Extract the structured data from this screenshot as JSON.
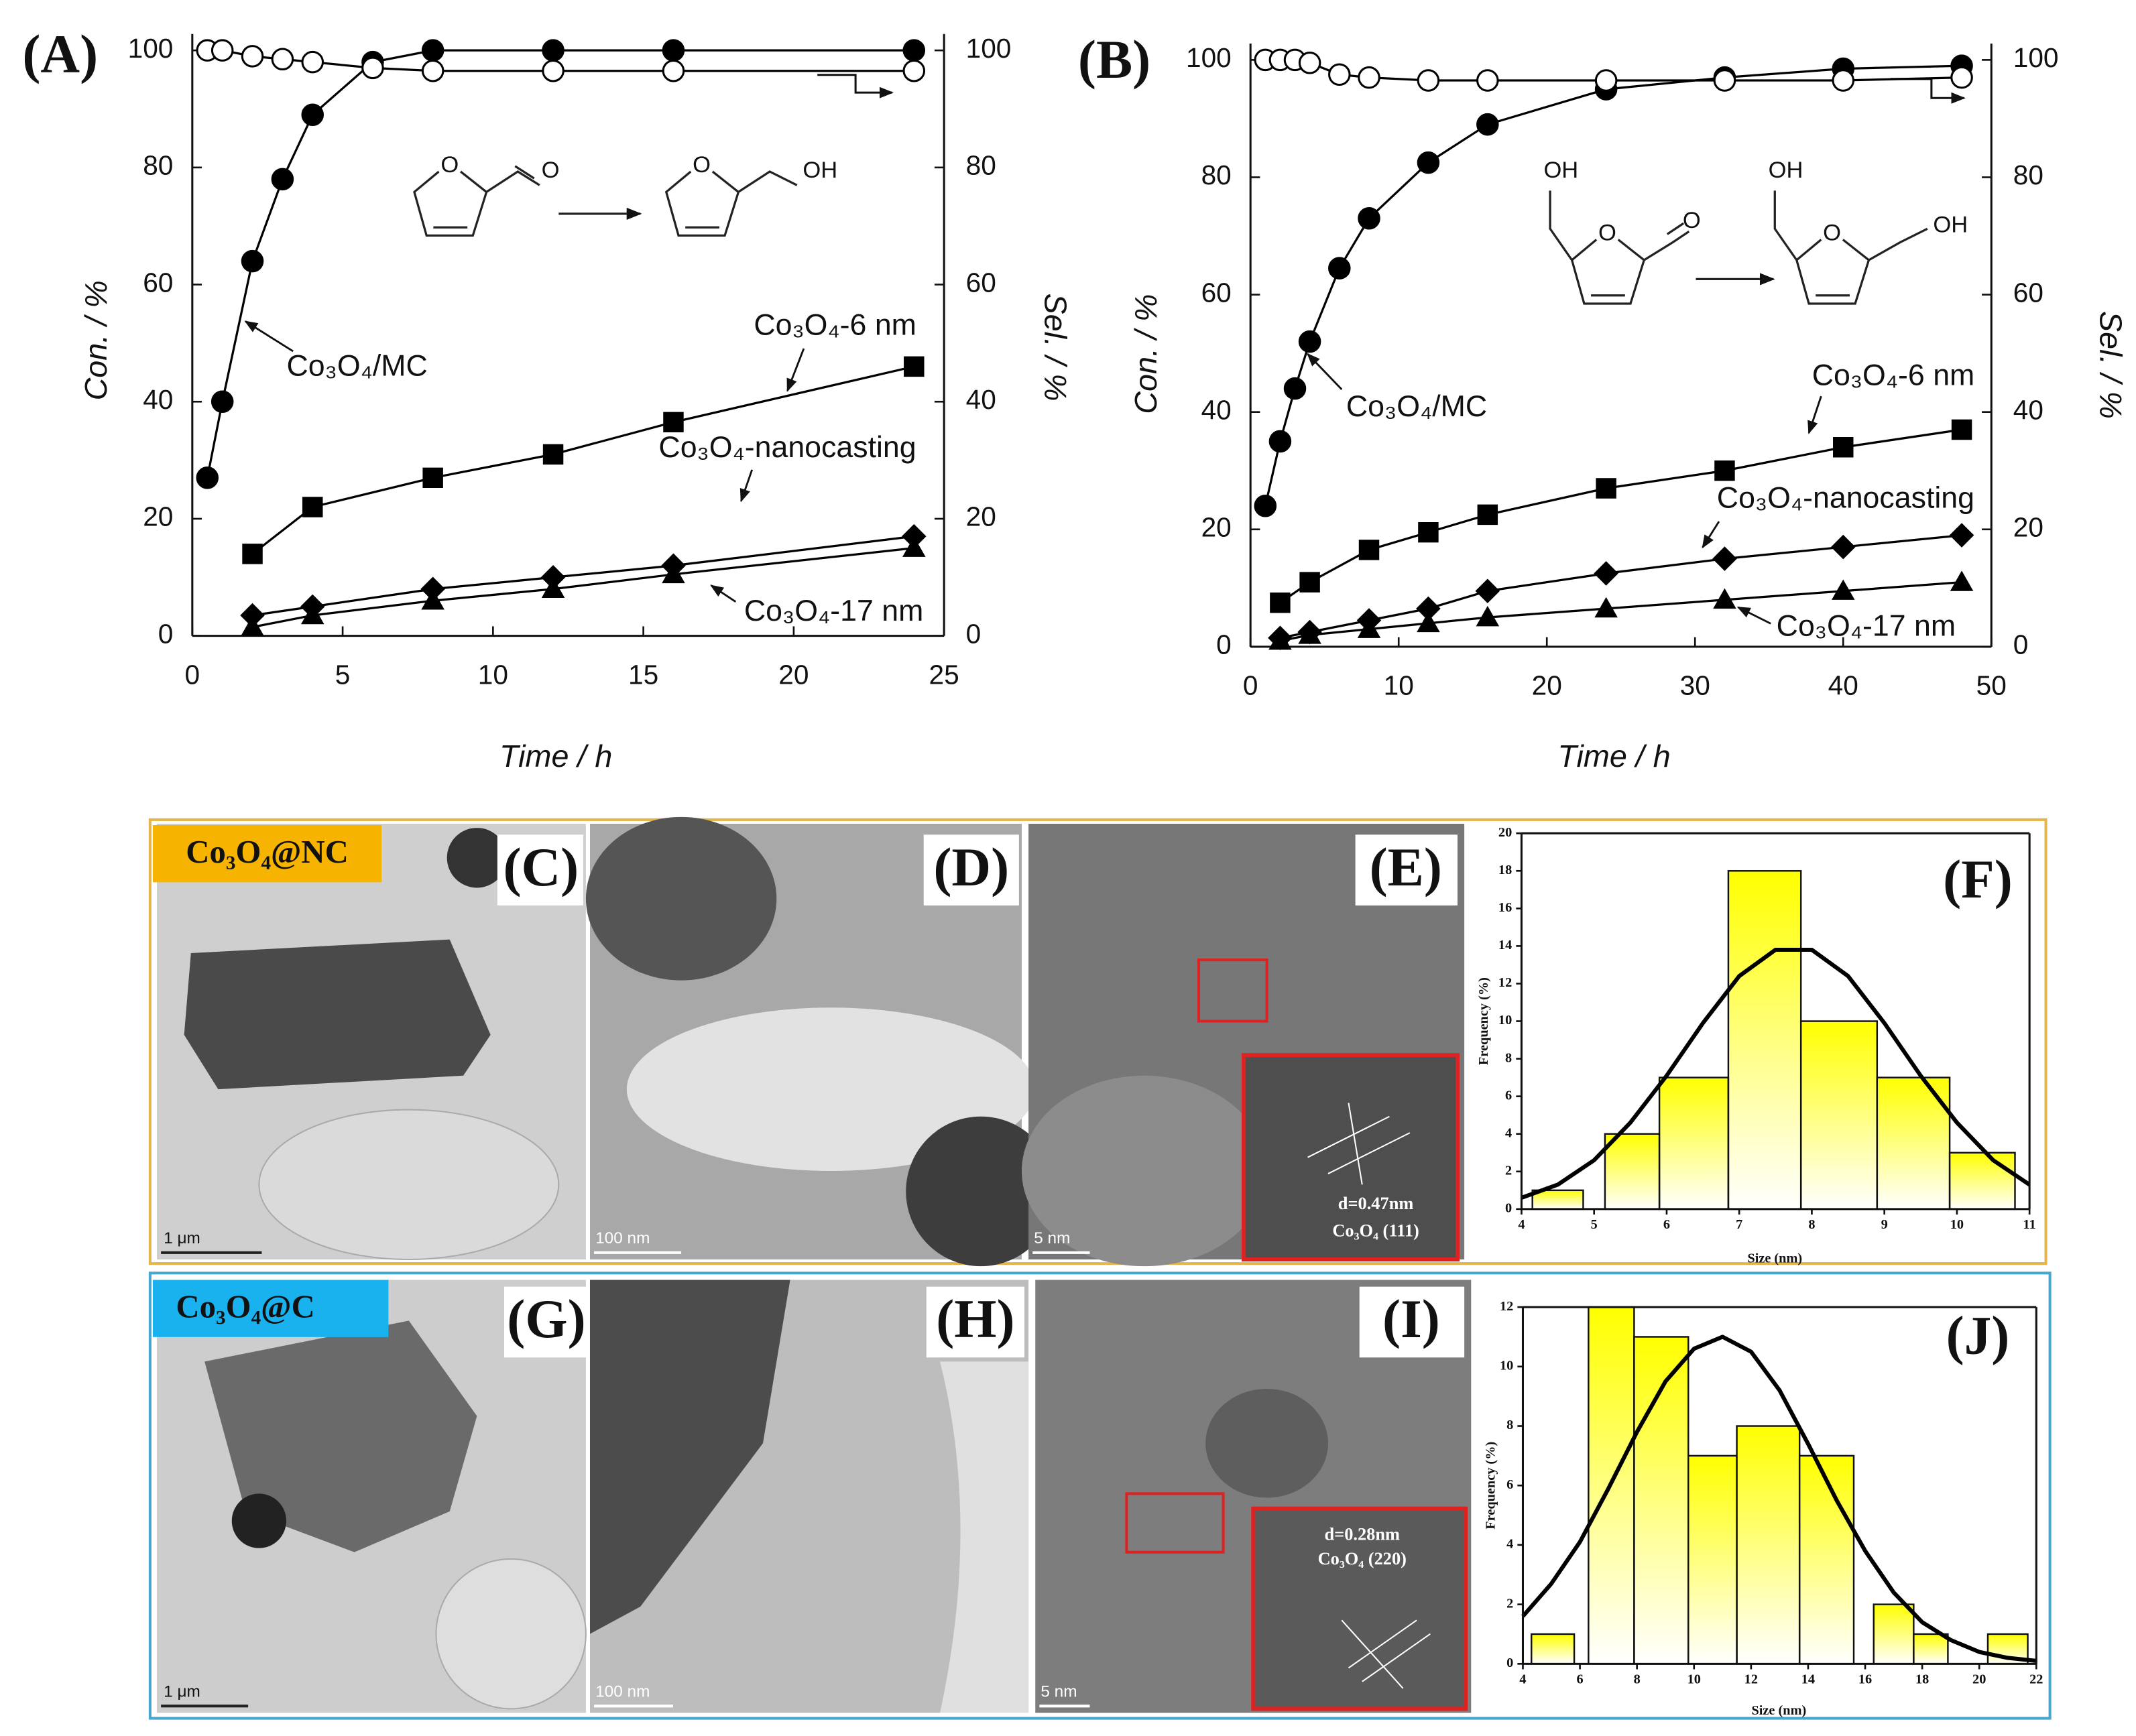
{
  "chart_data": [
    {
      "type": "line",
      "panel_label": "(A)",
      "xlabel": "Time / h",
      "ylabel": "Con. / %",
      "y2label": "Sel. / %",
      "xlim": [
        0,
        25
      ],
      "xticks": [
        0,
        5,
        10,
        15,
        20,
        25
      ],
      "ylim": [
        0,
        100
      ],
      "yticks": [
        0,
        20,
        40,
        60,
        80,
        100
      ],
      "y2lim": [
        0,
        100
      ],
      "y2ticks": [
        0,
        20,
        40,
        60,
        80,
        100
      ],
      "scheme_labels": [
        "O",
        "O",
        "O",
        "OH"
      ],
      "series": [
        {
          "name": "Co₃O₄/MC",
          "marker": "circle",
          "color": "#000000",
          "x": [
            0.5,
            1,
            2,
            3,
            4,
            6,
            8,
            12,
            16,
            24
          ],
          "values": [
            27,
            40,
            64,
            78,
            89,
            98,
            100,
            100,
            100,
            100
          ]
        },
        {
          "marker": "open-circle",
          "color": "#000000",
          "axis": "y2",
          "x": [
            0.5,
            1,
            2,
            3,
            4,
            6,
            8,
            12,
            16,
            24
          ],
          "values": [
            100,
            100,
            99,
            98.5,
            98,
            97,
            96.5,
            96.5,
            96.5,
            96.5
          ]
        },
        {
          "name": "Co₃O₄-6 nm",
          "marker": "square",
          "color": "#000000",
          "x": [
            2,
            4,
            8,
            12,
            16,
            24
          ],
          "values": [
            14,
            22,
            27,
            31,
            36.5,
            46
          ]
        },
        {
          "name": "Co₃O₄-nanocasting",
          "marker": "diamond",
          "color": "#000000",
          "x": [
            2,
            4,
            8,
            12,
            16,
            24
          ],
          "values": [
            3.5,
            5,
            8,
            10,
            12,
            17
          ]
        },
        {
          "name": "Co₃O₄-17 nm",
          "marker": "triangle",
          "color": "#000000",
          "x": [
            2,
            4,
            8,
            12,
            16,
            24
          ],
          "values": [
            1.5,
            3.5,
            6,
            8,
            10.5,
            15
          ]
        }
      ]
    },
    {
      "type": "line",
      "panel_label": "(B)",
      "xlabel": "Time / h",
      "ylabel": "Con. / %",
      "y2label": "Sel. / %",
      "xlim": [
        0,
        50
      ],
      "xticks": [
        0,
        10,
        20,
        30,
        40,
        50
      ],
      "ylim": [
        0,
        100
      ],
      "yticks": [
        0,
        20,
        40,
        60,
        80,
        100
      ],
      "y2lim": [
        0,
        100
      ],
      "y2ticks": [
        0,
        20,
        40,
        60,
        80,
        100
      ],
      "scheme_labels": [
        "OH",
        "O",
        "O",
        "OH",
        "O",
        "OH"
      ],
      "series": [
        {
          "name": "Co₃O₄/MC",
          "marker": "circle",
          "color": "#000000",
          "x": [
            1,
            2,
            3,
            4,
            6,
            8,
            12,
            16,
            24,
            32,
            40,
            48
          ],
          "values": [
            24,
            35,
            44,
            52,
            64.5,
            73,
            82.5,
            89,
            95,
            97,
            98.5,
            99
          ]
        },
        {
          "marker": "open-circle",
          "color": "#000000",
          "axis": "y2",
          "x": [
            1,
            2,
            3,
            4,
            6,
            8,
            12,
            16,
            24,
            32,
            40,
            48
          ],
          "values": [
            100,
            100,
            100,
            99.5,
            97.5,
            97,
            96.5,
            96.5,
            96.5,
            96.5,
            96.5,
            97
          ]
        },
        {
          "name": "Co₃O₄-6 nm",
          "marker": "square",
          "color": "#000000",
          "x": [
            2,
            4,
            8,
            12,
            16,
            24,
            32,
            40,
            48
          ],
          "values": [
            7.5,
            11,
            16.5,
            19.5,
            22.5,
            27,
            30,
            34,
            37
          ]
        },
        {
          "name": "Co₃O₄-nanocasting",
          "marker": "diamond",
          "color": "#000000",
          "x": [
            2,
            4,
            8,
            12,
            16,
            24,
            32,
            40,
            48
          ],
          "values": [
            1.5,
            2.5,
            4.5,
            6.5,
            9.5,
            12.5,
            15,
            17,
            19
          ]
        },
        {
          "name": "Co₃O₄-17 nm",
          "marker": "triangle",
          "color": "#000000",
          "x": [
            2,
            4,
            8,
            12,
            16,
            24,
            32,
            40,
            48
          ],
          "values": [
            1,
            2,
            3,
            4,
            5,
            6.5,
            8,
            9.5,
            11
          ]
        }
      ]
    },
    {
      "type": "histogram",
      "panel_label": "(F)",
      "xlabel": "Size (nm)",
      "ylabel": "Frequency (%)",
      "xlim": [
        4,
        11
      ],
      "xticks": [
        4,
        5,
        6,
        7,
        8,
        9,
        10,
        11
      ],
      "ylim": [
        0,
        20
      ],
      "yticks": [
        0,
        2,
        4,
        6,
        8,
        10,
        12,
        14,
        16,
        18,
        20
      ],
      "color": "#ffff00",
      "bins": [
        4.15,
        4.85,
        5.15,
        5.9,
        6.85,
        7.85,
        8.9,
        9.9,
        10.8
      ],
      "values": [
        1,
        0,
        4,
        7,
        18,
        10,
        7,
        3
      ],
      "fit": {
        "color": "#000000",
        "x": [
          4,
          4.5,
          5,
          5.5,
          6,
          6.5,
          7,
          7.5,
          8,
          8.5,
          9,
          9.5,
          10,
          10.5,
          11
        ],
        "values": [
          0.6,
          1.3,
          2.6,
          4.6,
          7.1,
          9.9,
          12.4,
          13.8,
          13.8,
          12.4,
          9.9,
          7.1,
          4.6,
          2.6,
          1.3
        ]
      }
    },
    {
      "type": "histogram",
      "panel_label": "(J)",
      "xlabel": "Size (nm)",
      "ylabel": "Frequency (%)",
      "xlim": [
        4,
        22
      ],
      "xticks": [
        4,
        6,
        8,
        10,
        12,
        14,
        16,
        18,
        20,
        22
      ],
      "ylim": [
        0,
        12
      ],
      "yticks": [
        0,
        2,
        4,
        6,
        8,
        10,
        12
      ],
      "color": "#ffff00",
      "bins": [
        4.3,
        5.8,
        6.3,
        7.9,
        9.8,
        11.5,
        13.7,
        15.6,
        16.3,
        17.7,
        18.9,
        20.3,
        21.7
      ],
      "values": [
        1,
        0,
        12,
        11,
        7,
        8,
        7,
        0,
        2,
        1,
        0,
        1
      ],
      "fit": {
        "color": "#000000",
        "x": [
          4,
          5,
          6,
          7,
          8,
          9,
          10,
          11,
          12,
          13,
          14,
          15,
          16,
          17,
          18,
          19,
          20,
          21,
          22
        ],
        "values": [
          1.6,
          2.7,
          4.1,
          5.9,
          7.8,
          9.5,
          10.6,
          11,
          10.5,
          9.2,
          7.4,
          5.5,
          3.8,
          2.4,
          1.4,
          0.8,
          0.4,
          0.2,
          0.1
        ]
      }
    }
  ],
  "panels": [
    {
      "group_label": "Co₃O₄@NC",
      "images": [
        {
          "label": "(C)",
          "scale_bar": "1 μm"
        },
        {
          "label": "(D)",
          "scale_bar": "100 nm"
        },
        {
          "label": "(E)",
          "scale_bar": "5 nm",
          "inset": [
            "d=0.47nm",
            "Co₃O₄ (111)"
          ]
        }
      ]
    },
    {
      "group_label": "Co₃O₄@C",
      "images": [
        {
          "label": "(G)",
          "scale_bar": "1 μm"
        },
        {
          "label": "(H)",
          "scale_bar": "100 nm"
        },
        {
          "label": "(I)",
          "scale_bar": "5 nm",
          "inset": [
            "d=0.28nm",
            "Co₃O₄ (220)"
          ]
        }
      ]
    }
  ]
}
